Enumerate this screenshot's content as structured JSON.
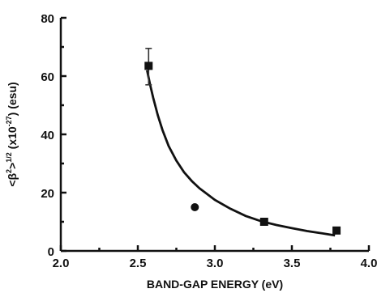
{
  "chart_data": {
    "type": "scatter",
    "title": "",
    "xlabel": "BAND-GAP ENERGY (eV)",
    "ylabel": {
      "main": "<β",
      "sup1": "2",
      "mid1": ">",
      "sup2": "1/2",
      "mid2": " (x10",
      "sup3": "-27",
      "end": ") (esu)"
    },
    "xlim": [
      2.0,
      4.0
    ],
    "ylim": [
      0,
      80
    ],
    "xticks": [
      "2.0",
      "2.5",
      "3.0",
      "3.5",
      "4.0"
    ],
    "yticks": [
      "0",
      "20",
      "40",
      "60",
      "80"
    ],
    "grid": false,
    "points": [
      {
        "x": 2.57,
        "y": 63.5,
        "yerr_low": 57,
        "yerr_high": 69.5,
        "marker": "square"
      },
      {
        "x": 2.87,
        "y": 15,
        "marker": "circle"
      },
      {
        "x": 3.32,
        "y": 10,
        "marker": "square"
      },
      {
        "x": 3.79,
        "y": 7,
        "marker": "square"
      }
    ],
    "fit_curve": {
      "x": [
        2.56,
        2.58,
        2.6,
        2.63,
        2.66,
        2.7,
        2.75,
        2.8,
        2.85,
        2.9,
        3.0,
        3.1,
        3.2,
        3.3,
        3.4,
        3.5,
        3.6,
        3.7,
        3.78
      ],
      "y": [
        62,
        57,
        52.5,
        46.5,
        41.5,
        36,
        31,
        27,
        24,
        21.5,
        17.5,
        14.5,
        12,
        10.2,
        8.9,
        7.8,
        6.8,
        6.0,
        5.3
      ]
    }
  }
}
